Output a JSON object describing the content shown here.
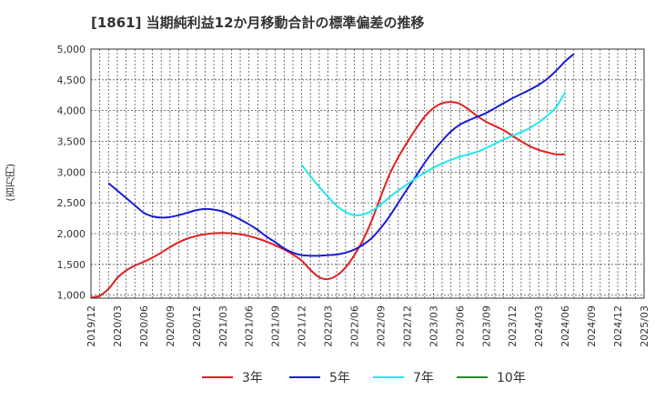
{
  "chart_data": {
    "type": "line",
    "title": "[1861]  当期純利益12か月移動合計の標準偏差の推移",
    "ylabel": "(百万円)",
    "xlabel": "",
    "ylim": [
      950,
      5000
    ],
    "yticks": [
      1000,
      1500,
      2000,
      2500,
      3000,
      3500,
      4000,
      4500,
      5000
    ],
    "ytick_labels": [
      "1,000",
      "1,500",
      "2,000",
      "2,500",
      "3,000",
      "3,500",
      "4,000",
      "4,500",
      "5,000"
    ],
    "xticks": [
      "2019/12",
      "2020/03",
      "2020/06",
      "2020/09",
      "2020/12",
      "2021/03",
      "2021/06",
      "2021/09",
      "2021/12",
      "2022/03",
      "2022/06",
      "2022/09",
      "2022/12",
      "2023/03",
      "2023/06",
      "2023/09",
      "2023/12",
      "2024/03",
      "2024/06",
      "2024/09",
      "2024/12",
      "2025/03"
    ],
    "grid": true,
    "legend_position": "bottom",
    "series": [
      {
        "name": "3年",
        "color": "#e02020",
        "start": "2019/12",
        "values": [
          960,
          990,
          1100,
          1280,
          1400,
          1480,
          1540,
          1610,
          1690,
          1780,
          1860,
          1920,
          1960,
          1990,
          2005,
          2010,
          2005,
          1990,
          1960,
          1920,
          1870,
          1810,
          1740,
          1660,
          1560,
          1410,
          1290,
          1260,
          1320,
          1450,
          1650,
          1900,
          2220,
          2600,
          2960,
          3240,
          3480,
          3700,
          3900,
          4040,
          4120,
          4140,
          4110,
          4020,
          3910,
          3820,
          3750,
          3680,
          3590,
          3500,
          3420,
          3360,
          3320,
          3290,
          3290
        ]
      },
      {
        "name": "5年",
        "color": "#1a1ad8",
        "start": "2019/12",
        "values": [
          null,
          null,
          2820,
          2700,
          2580,
          2460,
          2340,
          2280,
          2260,
          2270,
          2300,
          2340,
          2380,
          2400,
          2390,
          2360,
          2300,
          2230,
          2150,
          2060,
          1950,
          1860,
          1760,
          1690,
          1650,
          1640,
          1640,
          1650,
          1660,
          1690,
          1740,
          1820,
          1930,
          2090,
          2280,
          2500,
          2720,
          2930,
          3150,
          3340,
          3510,
          3660,
          3770,
          3840,
          3900,
          3960,
          4040,
          4120,
          4200,
          4270,
          4340,
          4420,
          4520,
          4650,
          4800,
          4920
        ]
      },
      {
        "name": "7年",
        "color": "#20e8ee",
        "start": "2019/12",
        "values": [
          null,
          null,
          null,
          null,
          null,
          null,
          null,
          null,
          null,
          null,
          null,
          null,
          null,
          null,
          null,
          null,
          null,
          null,
          null,
          null,
          null,
          null,
          null,
          null,
          3120,
          2930,
          2760,
          2600,
          2450,
          2350,
          2300,
          2310,
          2370,
          2470,
          2590,
          2700,
          2800,
          2900,
          2990,
          3070,
          3140,
          3200,
          3250,
          3290,
          3330,
          3390,
          3460,
          3530,
          3590,
          3650,
          3720,
          3810,
          3920,
          4060,
          4300
        ]
      },
      {
        "name": "10年",
        "color": "#2a8a2a",
        "start": "2019/12",
        "values": []
      }
    ]
  }
}
